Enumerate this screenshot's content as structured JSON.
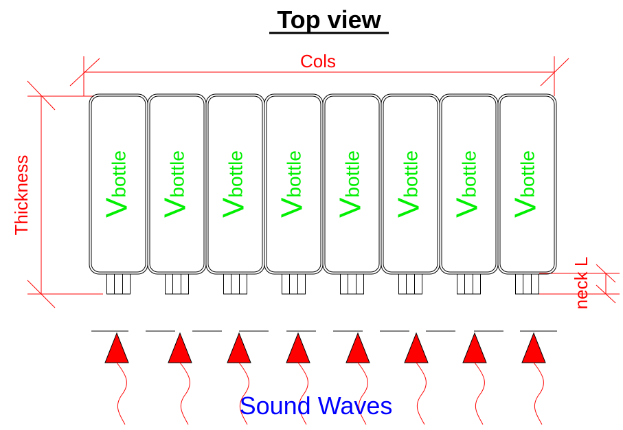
{
  "title": "Top view",
  "dimensions": {
    "cols": "Cols",
    "thickness": "Thickness",
    "neck": "neck L"
  },
  "bottle_label": {
    "main": "V",
    "subscript": "bottle"
  },
  "bottle_count": 8,
  "waves_label": "Sound Waves",
  "colors": {
    "dimension": "#ff0000",
    "bottle_label": "#00ee00",
    "waves_label": "#0000ff",
    "arrow": "#ff0000",
    "outline": "#000000"
  }
}
